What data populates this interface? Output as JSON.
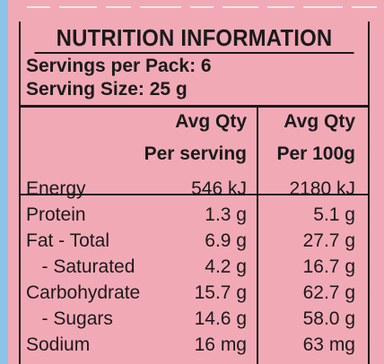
{
  "title": "NUTRITION INFORMATION",
  "servings_per_pack": "Servings per Pack: 6",
  "serving_size": "Serving Size: 25 g",
  "columns": {
    "per_serving_line1": "Avg Qty",
    "per_serving_line2": "Per serving",
    "per_100g_line1": "Avg Qty",
    "per_100g_line2": "Per 100g"
  },
  "rows": [
    {
      "label": "Energy",
      "per_serving": "546 kJ",
      "per_100g": "2180 kJ"
    },
    {
      "label": "Protein",
      "per_serving": "1.3 g",
      "per_100g": "5.1 g"
    },
    {
      "label": "Fat - Total",
      "per_serving": "6.9 g",
      "per_100g": "27.7 g"
    },
    {
      "label": "   - Saturated",
      "per_serving": "4.2 g",
      "per_100g": "16.7 g"
    },
    {
      "label": "Carbohydrate",
      "per_serving": "15.7 g",
      "per_100g": "62.7 g"
    },
    {
      "label": "   - Sugars",
      "per_serving": "14.6 g",
      "per_100g": "58.0 g"
    },
    {
      "label": "Sodium",
      "per_serving": "16 mg",
      "per_100g": "63 mg"
    }
  ]
}
